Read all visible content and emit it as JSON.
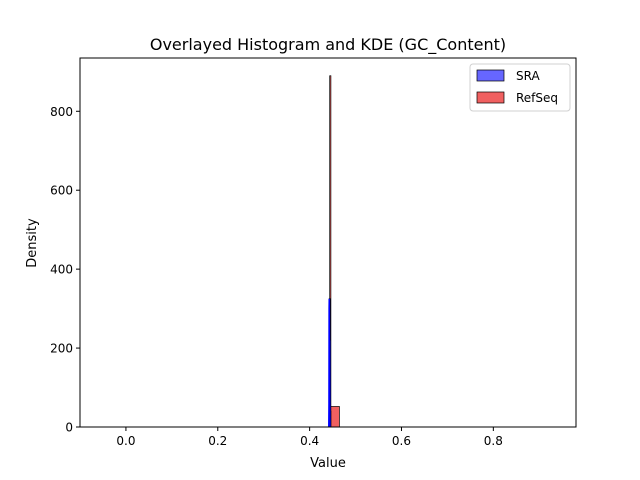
{
  "chart_data": {
    "type": "bar",
    "title": "Overlayed Histogram and KDE (GC_Content)",
    "xlabel": "Value",
    "ylabel": "Density",
    "xlim": [
      -0.1,
      0.98
    ],
    "ylim": [
      0,
      935
    ],
    "xticks": [
      0.0,
      0.2,
      0.4,
      0.6,
      0.8
    ],
    "xtick_labels": [
      "0.0",
      "0.2",
      "0.4",
      "0.6",
      "0.8"
    ],
    "yticks": [
      0,
      200,
      400,
      600,
      800
    ],
    "ytick_labels": [
      "0",
      "200",
      "400",
      "600",
      "800"
    ],
    "grid": false,
    "legend_position": "top-right",
    "series": [
      {
        "name": "SRA",
        "color": "#0000ff",
        "fill": "#6666ff",
        "histogram": [
          {
            "x0": 0.4424,
            "x1": 0.443,
            "density": 325
          },
          {
            "x0": 0.443,
            "x1": 0.4436,
            "density": 220
          },
          {
            "x0": 0.4436,
            "x1": 0.4442,
            "density": 40
          }
        ],
        "kde": [
          {
            "x": 0.4418,
            "y": 0
          },
          {
            "x": 0.4422,
            "y": 60
          },
          {
            "x": 0.4425,
            "y": 300
          },
          {
            "x": 0.4428,
            "y": 325
          },
          {
            "x": 0.4431,
            "y": 180
          },
          {
            "x": 0.4434,
            "y": 220
          },
          {
            "x": 0.4437,
            "y": 60
          },
          {
            "x": 0.4441,
            "y": 0
          }
        ]
      },
      {
        "name": "RefSeq",
        "color": "#ff0000",
        "fill": "#f06060",
        "histogram": [
          {
            "x0": 0.4437,
            "x1": 0.4463,
            "density": 890
          },
          {
            "x0": 0.4463,
            "x1": 0.4649,
            "density": 52
          }
        ],
        "kde": []
      }
    ]
  }
}
